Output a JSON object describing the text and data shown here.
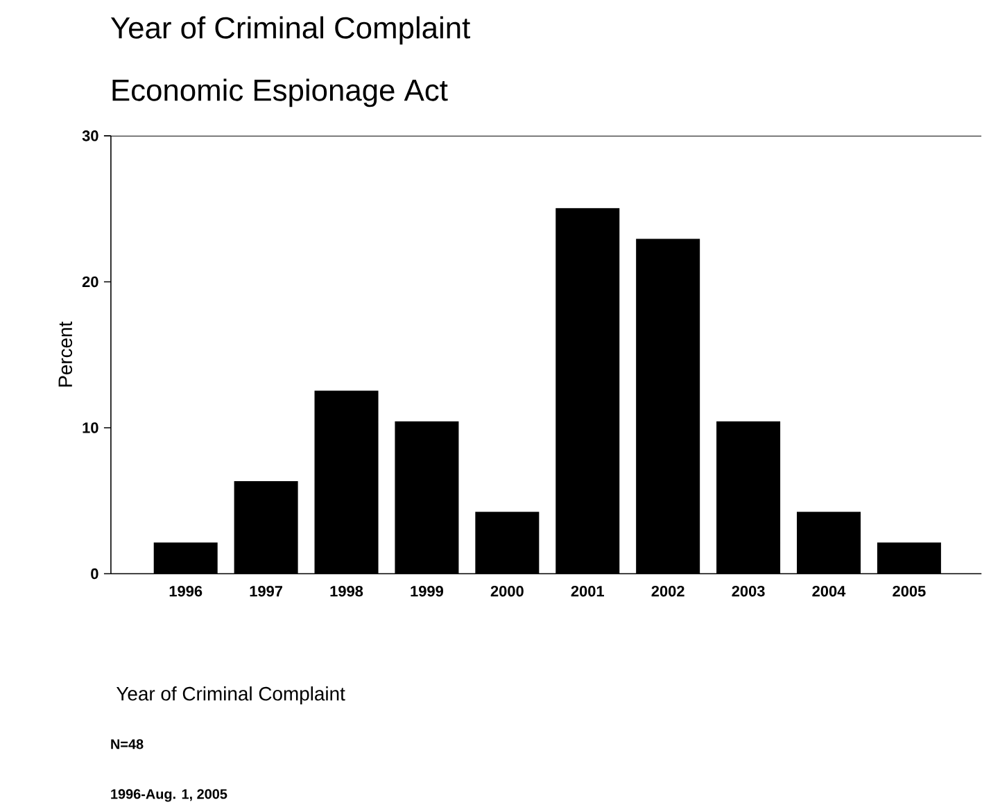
{
  "chart_data": {
    "type": "bar",
    "title": "Year of Criminal Complaint",
    "subtitle": "Economic Espionage Act",
    "xlabel": "Year of Criminal Complaint",
    "ylabel": "Percent",
    "categories": [
      "1996",
      "1997",
      "1998",
      "1999",
      "2000",
      "2001",
      "2002",
      "2003",
      "2004",
      "2005"
    ],
    "values": [
      2.1,
      6.3,
      12.5,
      10.4,
      4.2,
      25,
      22.9,
      10.4,
      4.2,
      2.1
    ],
    "color": "#000000",
    "ylim": [
      0,
      30
    ],
    "yticks": [
      0,
      10,
      20,
      30
    ],
    "annotations": [
      "N=48",
      "1996-Aug. 1, 2005"
    ]
  }
}
